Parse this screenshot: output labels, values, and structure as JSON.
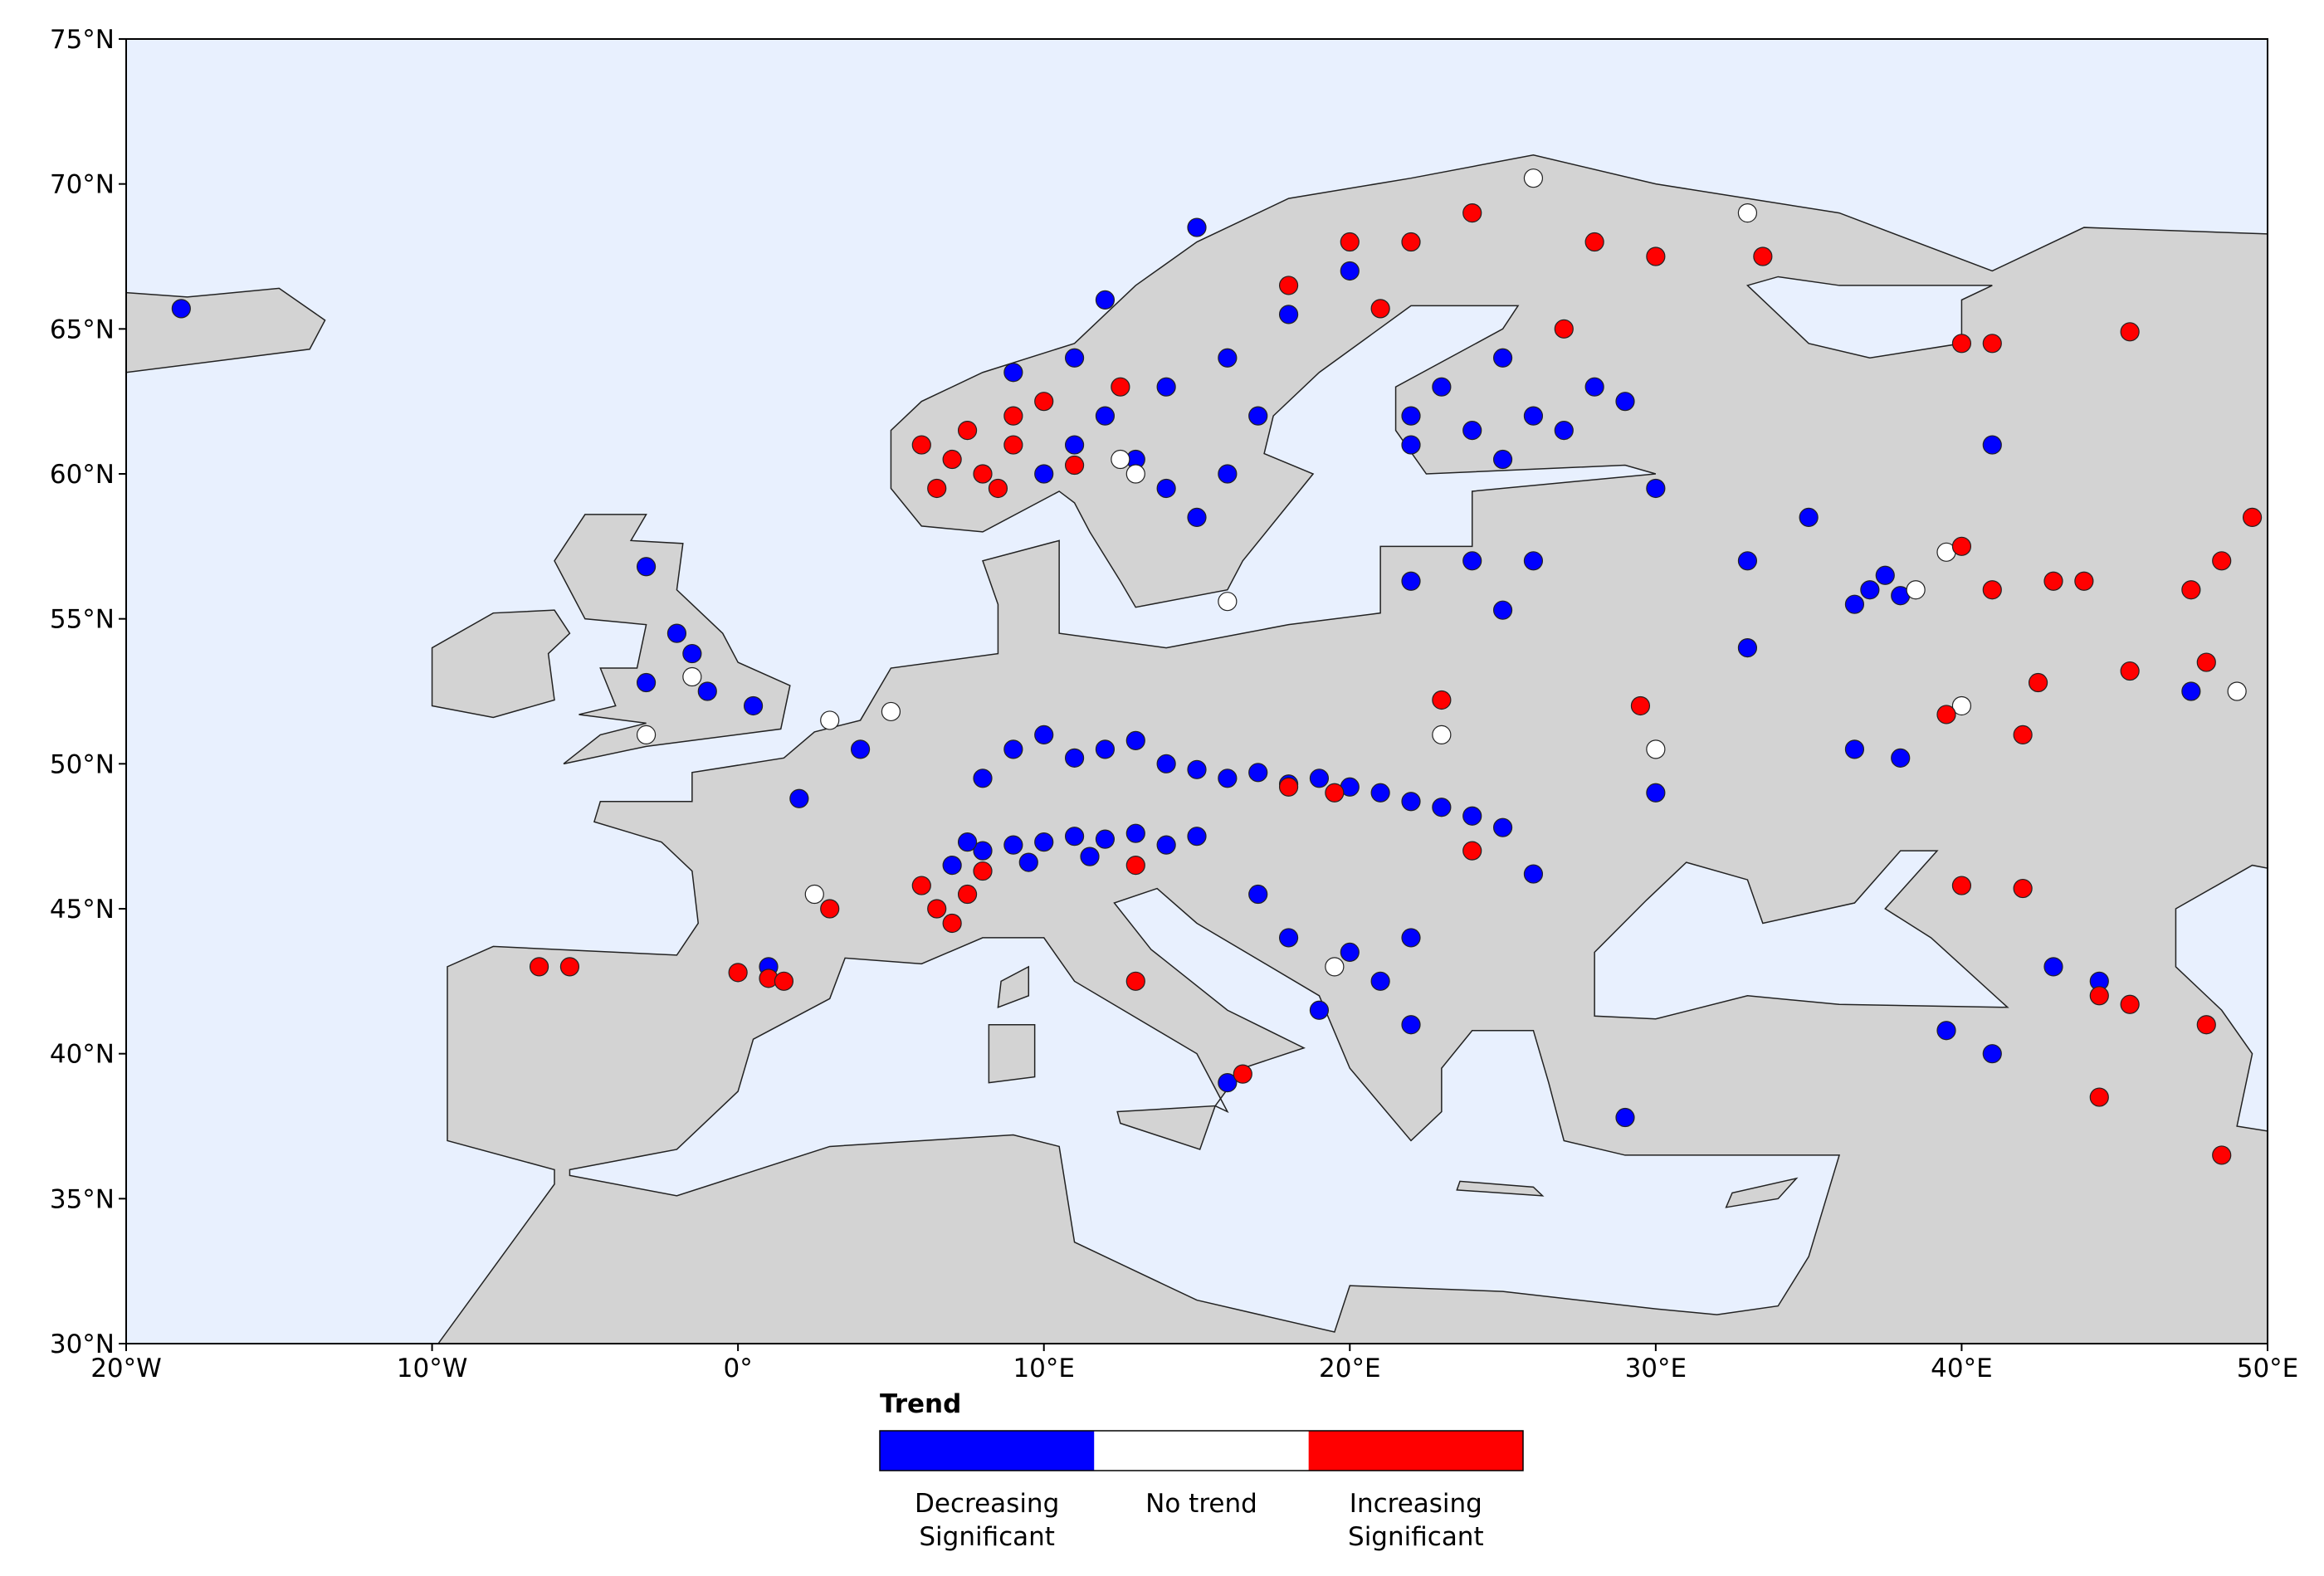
{
  "map": {
    "xlim": [
      -20,
      50
    ],
    "ylim": [
      30,
      75
    ],
    "xticks": [
      {
        "value": -20,
        "label": "20°W"
      },
      {
        "value": -10,
        "label": "10°W"
      },
      {
        "value": 0,
        "label": "0°"
      },
      {
        "value": 10,
        "label": "10°E"
      },
      {
        "value": 20,
        "label": "20°E"
      },
      {
        "value": 30,
        "label": "30°E"
      },
      {
        "value": 40,
        "label": "40°E"
      },
      {
        "value": 50,
        "label": "50°E"
      }
    ],
    "yticks": [
      {
        "value": 30,
        "label": "30°N"
      },
      {
        "value": 35,
        "label": "35°N"
      },
      {
        "value": 40,
        "label": "40°N"
      },
      {
        "value": 45,
        "label": "45°N"
      },
      {
        "value": 50,
        "label": "50°N"
      },
      {
        "value": 55,
        "label": "55°N"
      },
      {
        "value": 60,
        "label": "60°N"
      },
      {
        "value": 65,
        "label": "65°N"
      },
      {
        "value": 70,
        "label": "70°N"
      },
      {
        "value": 75,
        "label": "75°N"
      }
    ],
    "legend": {
      "title": "Trend",
      "items": [
        {
          "label": [
            "Decreasing",
            "Significant"
          ],
          "color": "#0000ff"
        },
        {
          "label": [
            "No trend"
          ],
          "color": "#ffffff"
        },
        {
          "label": [
            "Increasing",
            "Significant"
          ],
          "color": "#ff0000"
        }
      ]
    },
    "series": [
      {
        "color": "#0000ff",
        "x": [
          7,
          8,
          9,
          10,
          11,
          12,
          13,
          14,
          15,
          9.5,
          11.5,
          7.5,
          8,
          9,
          10,
          11,
          12,
          13,
          14,
          15,
          16,
          17,
          18,
          19,
          20,
          21,
          22,
          23,
          24,
          25,
          26,
          -3,
          -2,
          -1.5,
          -3,
          -1,
          0.5,
          11,
          12,
          13,
          14,
          15,
          16,
          17,
          16,
          14,
          18,
          20,
          15,
          12,
          9,
          11,
          10,
          22,
          24,
          26,
          28,
          25,
          23,
          27,
          29,
          22,
          25,
          24,
          26,
          22,
          25,
          37,
          38,
          36.5,
          37.5,
          35,
          30,
          33,
          41,
          17,
          18,
          20,
          21,
          22,
          19,
          22,
          -18.2,
          2,
          1,
          16,
          36.5,
          30,
          39.5,
          41,
          43,
          44.5,
          29,
          47.5,
          38,
          4,
          33
        ],
        "y": [
          46.5,
          47,
          47.2,
          47.3,
          47.5,
          47.4,
          47.6,
          47.2,
          47.5,
          46.6,
          46.8,
          47.3,
          49.5,
          50.5,
          51,
          50.2,
          50.5,
          50.8,
          50,
          49.8,
          49.5,
          49.7,
          49.3,
          49.5,
          49.2,
          49,
          48.7,
          48.5,
          48.2,
          47.8,
          46.2,
          56.8,
          54.5,
          53.8,
          52.8,
          52.5,
          52,
          61,
          62,
          60.5,
          59.5,
          58.5,
          60,
          62,
          64,
          63,
          65.5,
          67,
          68.5,
          66,
          63.5,
          64,
          60,
          62,
          61.5,
          62,
          63,
          64,
          63,
          61.5,
          62.5,
          61,
          60.5,
          57,
          57,
          56.3,
          55.3,
          56,
          55.8,
          55.5,
          56.5,
          58.5,
          59.5,
          57,
          61,
          45.5,
          44,
          43.5,
          42.5,
          44,
          41.5,
          41,
          65.7,
          48.8,
          43,
          39,
          50.5,
          49,
          40.8,
          40,
          43,
          42.5,
          37.8,
          52.5,
          50.2,
          50.5,
          54
        ]
      },
      {
        "color": "#ffffff",
        "x": [
          5,
          3,
          -1.5,
          -3,
          12.5,
          13,
          26,
          33,
          38.5,
          39.5,
          30,
          19.5,
          2.5,
          40,
          49,
          16,
          23
        ],
        "y": [
          51.8,
          51.5,
          53,
          51,
          60.5,
          60,
          70.2,
          69,
          56,
          57.3,
          50.5,
          43,
          45.5,
          52,
          52.5,
          55.6,
          51
        ]
      },
      {
        "color": "#ff0000",
        "x": [
          6,
          7,
          8,
          9,
          8.5,
          10,
          9,
          7.5,
          6.5,
          11,
          12.5,
          20,
          22,
          24,
          28,
          30,
          27,
          18,
          21,
          33.5,
          40,
          6.5,
          7,
          7.5,
          6,
          8,
          13,
          18,
          19.5,
          -6.5,
          -5.5,
          0,
          1,
          1.5,
          3,
          13,
          16.5,
          40,
          41,
          43,
          44,
          47.5,
          48.5,
          49.5,
          45.5,
          42.5,
          39.5,
          42,
          48,
          45.5,
          41,
          40,
          42,
          44.5,
          45.5,
          48,
          44.5,
          48.5,
          29.5,
          23,
          24
        ],
        "y": [
          61,
          60.5,
          60,
          61,
          59.5,
          62.5,
          62,
          61.5,
          59.5,
          60.3,
          63,
          68,
          68,
          69,
          68,
          67.5,
          65,
          66.5,
          65.7,
          67.5,
          64.5,
          45,
          44.5,
          45.5,
          45.8,
          46.3,
          46.5,
          49.2,
          49,
          43,
          43,
          42.8,
          42.6,
          42.5,
          45,
          42.5,
          39.3,
          57.5,
          56,
          56.3,
          56.3,
          56,
          57,
          58.5,
          53.2,
          52.8,
          51.7,
          51,
          53.5,
          64.9,
          64.5,
          45.8,
          45.7,
          42,
          41.7,
          41,
          38.5,
          36.5,
          52,
          52.2,
          47
        ]
      }
    ]
  }
}
